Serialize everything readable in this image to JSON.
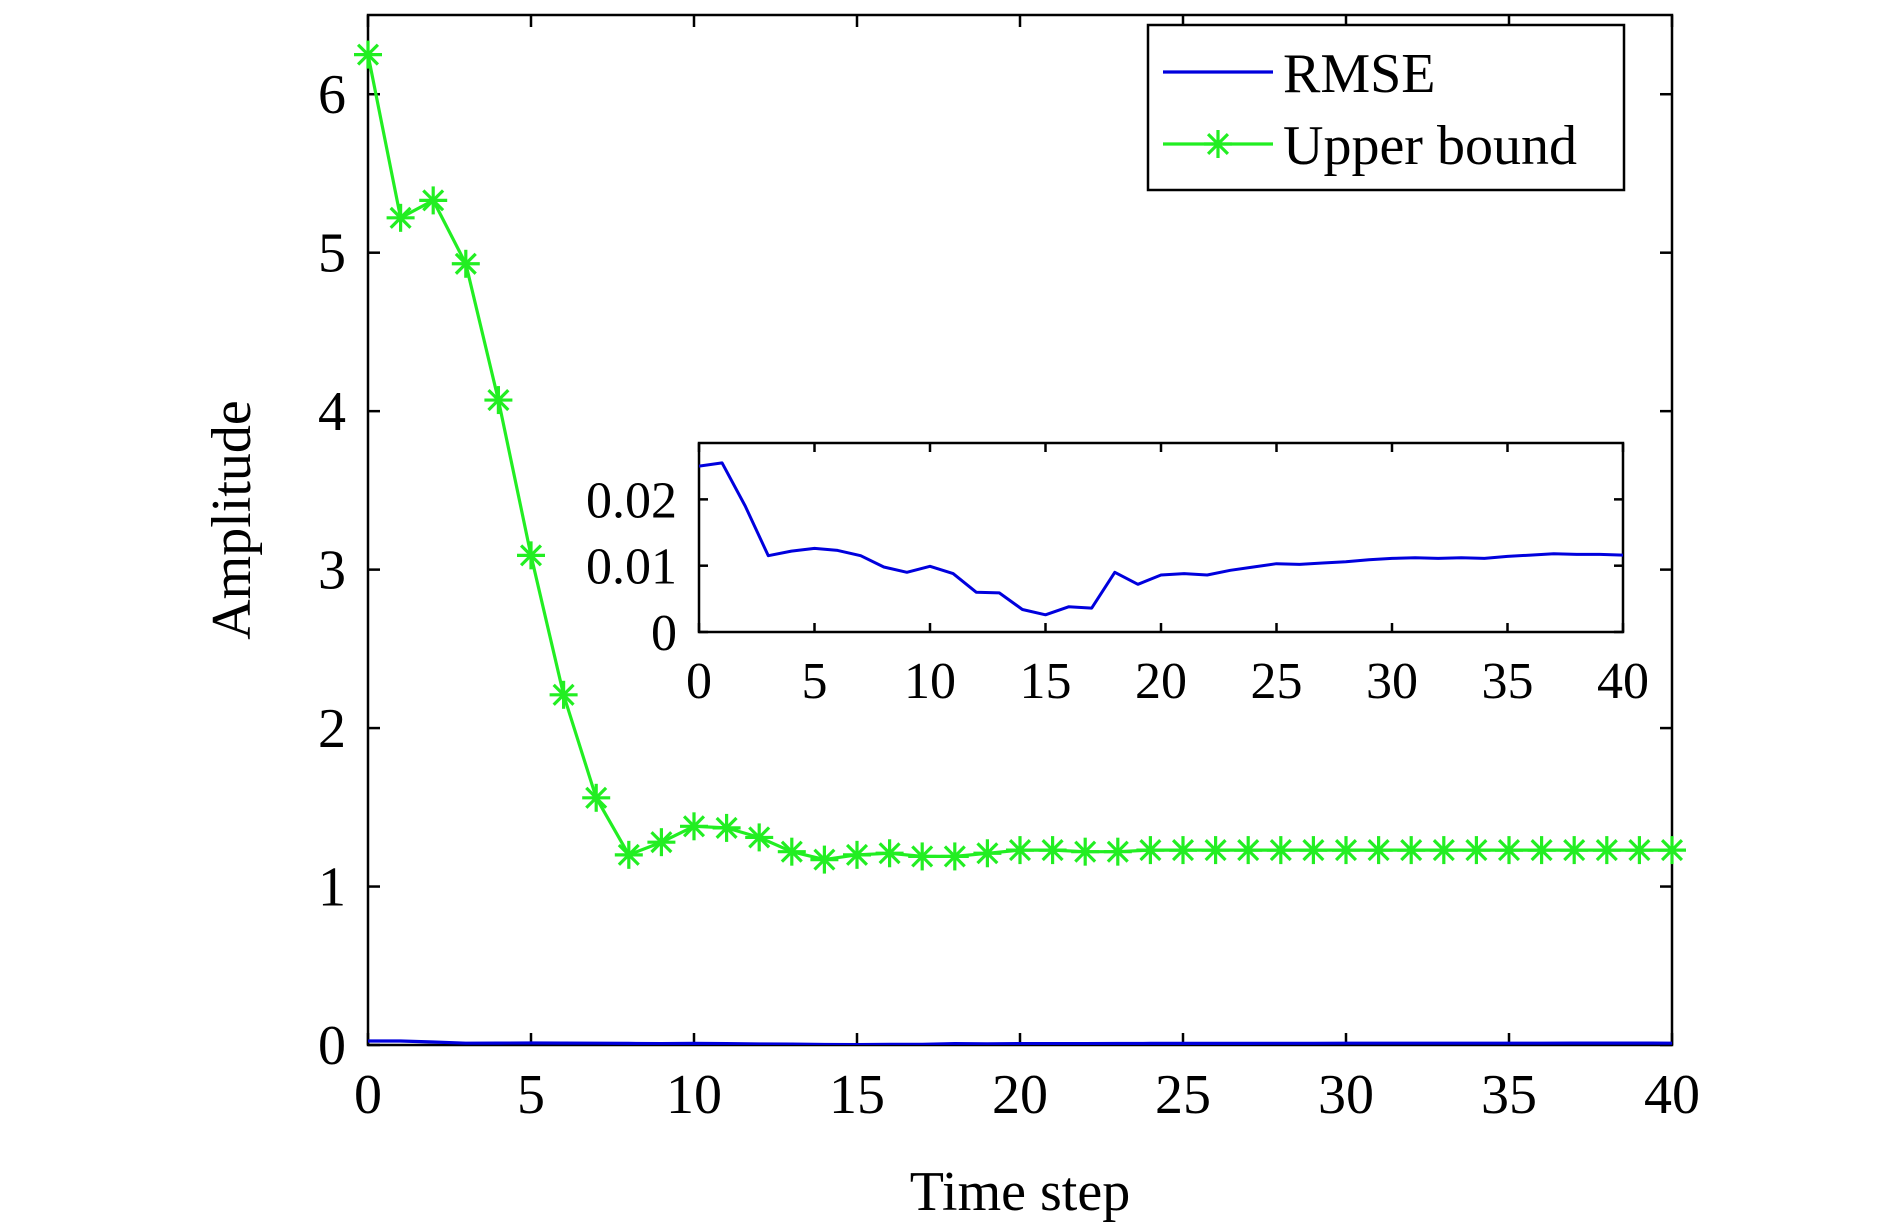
{
  "chart_data": [
    {
      "type": "line",
      "title": "",
      "xlabel": "Time step",
      "ylabel": "Amplitude",
      "xlim": [
        0,
        40
      ],
      "ylim": [
        0,
        6.5
      ],
      "xticks": [
        0,
        5,
        10,
        15,
        20,
        25,
        30,
        35,
        40
      ],
      "yticks": [
        0,
        1,
        2,
        3,
        4,
        5,
        6
      ],
      "grid": false,
      "legend_position": "top-right",
      "x": [
        0,
        1,
        2,
        3,
        4,
        5,
        6,
        7,
        8,
        9,
        10,
        11,
        12,
        13,
        14,
        15,
        16,
        17,
        18,
        19,
        20,
        21,
        22,
        23,
        24,
        25,
        26,
        27,
        28,
        29,
        30,
        31,
        32,
        33,
        34,
        35,
        36,
        37,
        38,
        39,
        40
      ],
      "series": [
        {
          "name": "RMSE",
          "color": "#0000dd",
          "marker": "none",
          "values": [
            0.025,
            0.0255,
            0.019,
            0.0115,
            0.0122,
            0.0126,
            0.0123,
            0.0115,
            0.0098,
            0.009,
            0.0099,
            0.0088,
            0.006,
            0.0059,
            0.0034,
            0.0026,
            0.0038,
            0.0036,
            0.009,
            0.0072,
            0.0086,
            0.0088,
            0.0086,
            0.0093,
            0.0098,
            0.0103,
            0.0102,
            0.0104,
            0.0106,
            0.0109,
            0.0111,
            0.0112,
            0.0111,
            0.0112,
            0.0111,
            0.0114,
            0.0116,
            0.0118,
            0.0117,
            0.0117,
            0.0116
          ]
        },
        {
          "name": "Upper bound",
          "color": "#22ee22",
          "marker": "asterisk",
          "values": [
            6.25,
            5.22,
            5.33,
            4.93,
            4.07,
            3.09,
            2.21,
            1.56,
            1.2,
            1.28,
            1.38,
            1.37,
            1.31,
            1.22,
            1.17,
            1.2,
            1.21,
            1.19,
            1.19,
            1.21,
            1.23,
            1.23,
            1.22,
            1.22,
            1.23,
            1.23,
            1.23,
            1.23,
            1.23,
            1.23,
            1.23,
            1.23,
            1.23,
            1.23,
            1.23,
            1.23,
            1.23,
            1.23,
            1.23,
            1.23,
            1.23
          ]
        }
      ]
    },
    {
      "type": "line",
      "title": "",
      "xlabel": "",
      "ylabel": "",
      "xlim": [
        0,
        40
      ],
      "ylim": [
        0,
        0.0285
      ],
      "xticks": [
        0,
        5,
        10,
        15,
        20,
        25,
        30,
        35,
        40
      ],
      "yticks": [
        0,
        0.01,
        0.02
      ],
      "ytick_labels": [
        "0",
        "0.01",
        "0.02"
      ],
      "grid": false,
      "series_ref": "RMSE",
      "color": "#0000dd"
    }
  ]
}
